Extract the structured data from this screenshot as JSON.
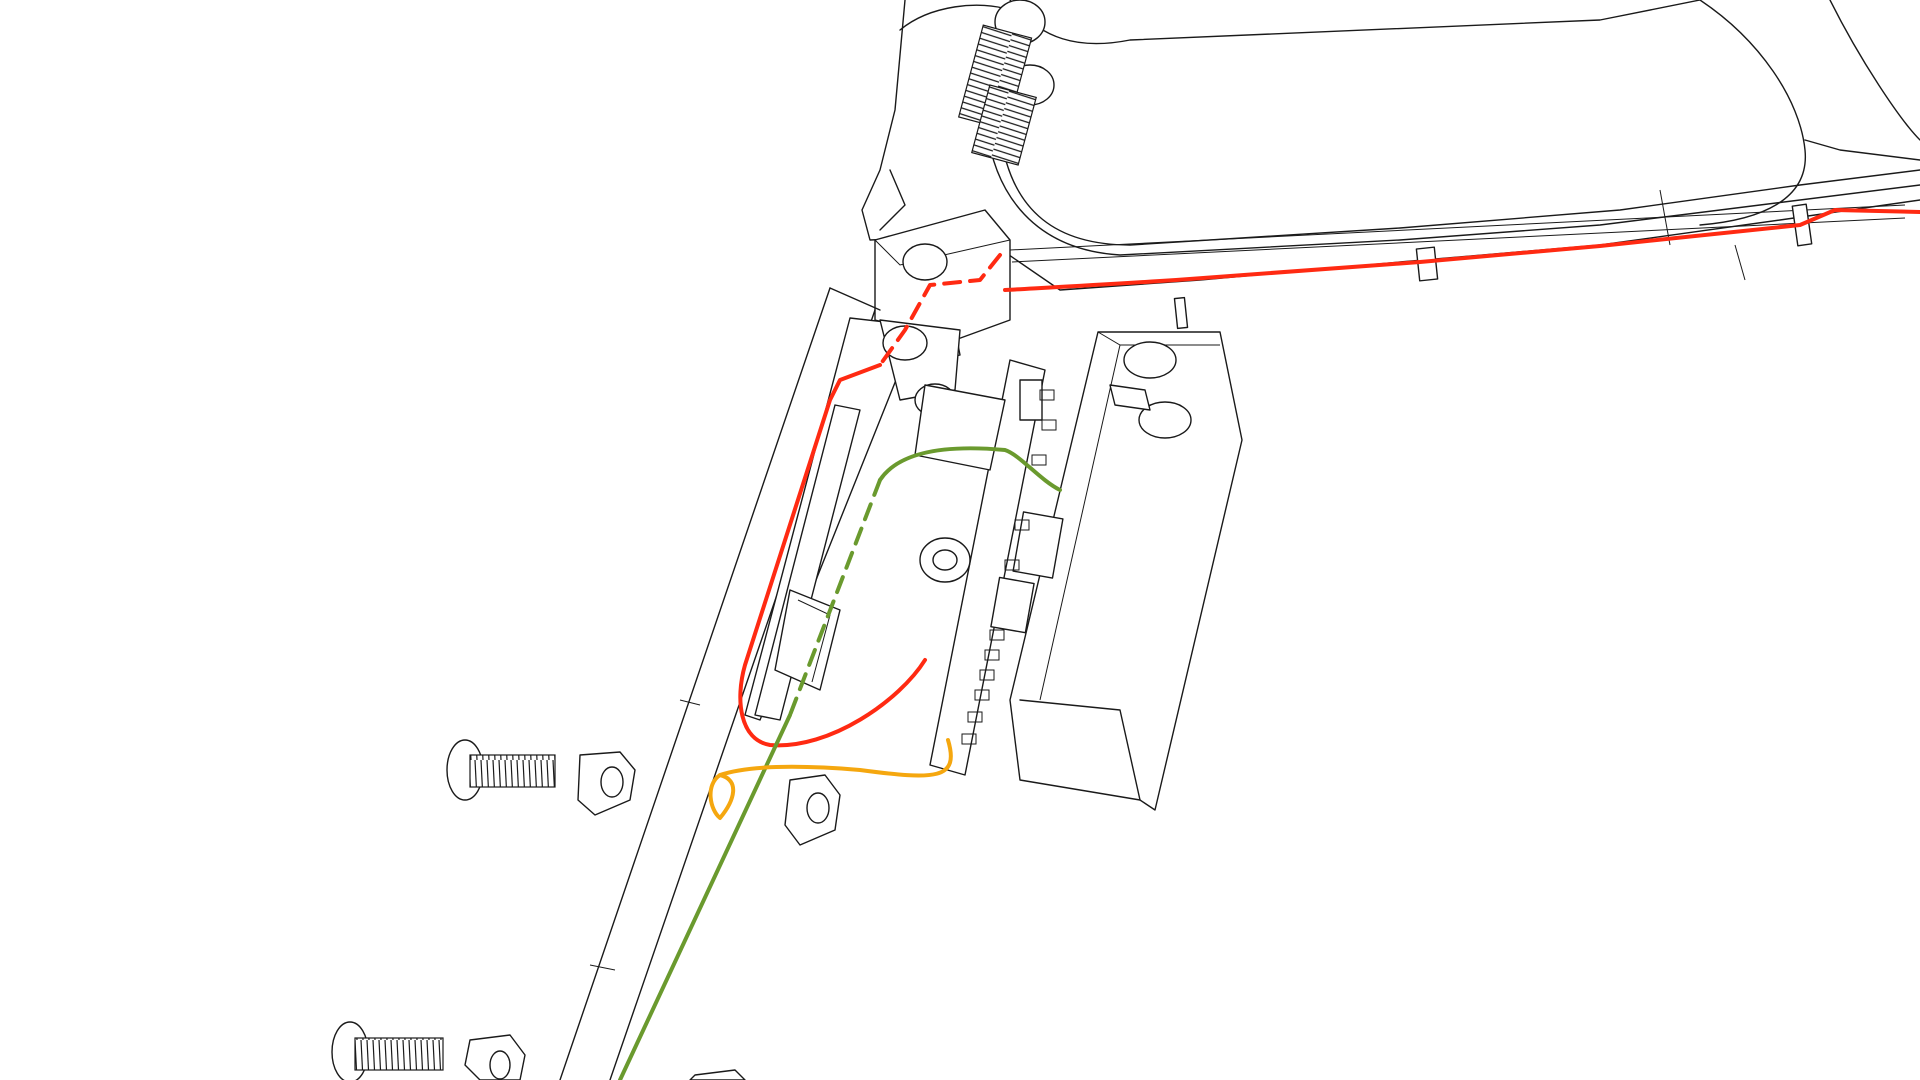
{
  "colors": {
    "outline": "#1a1a1a",
    "power_wire": "#ff2a12",
    "signal_wire": "#6a9a2e",
    "ground_wire": "#f5a70f",
    "background": "#ffffff"
  },
  "diagram": {
    "type": "exploded-assembly-line-drawing",
    "components": [
      {
        "id": "frame-arm-with-channel",
        "icon": "frame-arm"
      },
      {
        "id": "spring-mount-with-screws",
        "icon": "coil-screws"
      },
      {
        "id": "enclosure-base",
        "icon": "open-box"
      },
      {
        "id": "enclosure-lid",
        "icon": "open-box"
      },
      {
        "id": "circuit-board",
        "icon": "pcb"
      },
      {
        "id": "battery-cell",
        "icon": "battery"
      },
      {
        "id": "hex-nut",
        "icon": "nut"
      },
      {
        "id": "machine-screw",
        "icon": "screw"
      }
    ],
    "wires": [
      {
        "id": "red-wire",
        "color_key": "power_wire",
        "style": "solid-with-dashed-hidden-segment"
      },
      {
        "id": "green-wire",
        "color_key": "signal_wire",
        "style": "solid-with-dashed-hidden-segment"
      },
      {
        "id": "yellow-wire",
        "color_key": "ground_wire",
        "style": "solid"
      }
    ]
  }
}
